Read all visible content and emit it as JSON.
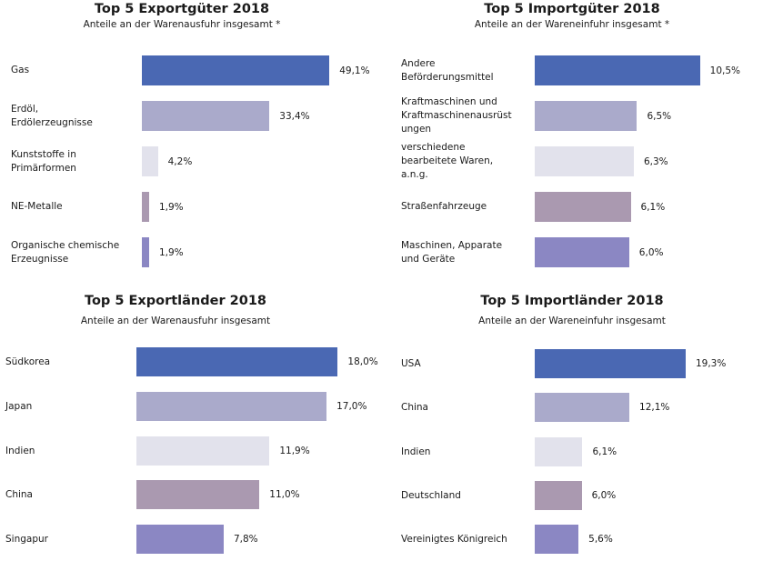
{
  "colors": [
    "#4a68b3",
    "#aaaacb",
    "#e2e2ec",
    "#aa99b0",
    "#8b87c3"
  ],
  "chart_data": [
    {
      "type": "bar",
      "orientation": "horizontal",
      "title": "Top 5  Exportgüter 2018",
      "subtitle": "Anteile an der Warenausfuhr insgesamt *",
      "categories": [
        "Gas",
        "Erdöl,\nErdölerzeugnisse",
        "Kunststoffe in\nPrimärformen",
        "NE-Metalle",
        "Organische chemische\nErzeugnisse"
      ],
      "values": [
        49.1,
        33.4,
        4.2,
        1.9,
        1.9
      ],
      "labels": [
        "49,1%",
        "33,4%",
        "4,2%",
        "1,9%",
        "1,9%"
      ],
      "unit": "%",
      "xlabel": "",
      "ylabel": "",
      "grid": false
    },
    {
      "type": "bar",
      "orientation": "horizontal",
      "title": "Top 5  Importgüter 2018",
      "subtitle": "Anteile an der Wareneinfuhr insgesamt *",
      "categories": [
        "Andere\nBeförderungsmittel",
        "Kraftmaschinen und\nKraftmaschinenausrüst\nungen",
        "verschiedene\nbearbeitete Waren,\na.n.g.",
        "Straßenfahrzeuge",
        "Maschinen, Apparate\nund Geräte"
      ],
      "values": [
        10.5,
        6.5,
        6.3,
        6.1,
        6.0
      ],
      "labels": [
        "10,5%",
        "6,5%",
        "6,3%",
        "6,1%",
        "6,0%"
      ],
      "unit": "%",
      "xlabel": "",
      "ylabel": "",
      "grid": false
    },
    {
      "type": "bar",
      "orientation": "horizontal",
      "title": "Top 5  Exportländer 2018",
      "subtitle": "Anteile an der Warenausfuhr insgesamt",
      "categories": [
        "Südkorea",
        "Japan",
        "Indien",
        "China",
        "Singapur"
      ],
      "values": [
        18.0,
        17.0,
        11.9,
        11.0,
        7.8
      ],
      "labels": [
        "18,0%",
        "17,0%",
        "11,9%",
        "11,0%",
        "7,8%"
      ],
      "unit": "%",
      "xlabel": "",
      "ylabel": "",
      "grid": false
    },
    {
      "type": "bar",
      "orientation": "horizontal",
      "title": "Top 5  Importländer 2018",
      "subtitle": "Anteile an der Wareneinfuhr insgesamt",
      "categories": [
        "USA",
        "China",
        "Indien",
        "Deutschland",
        "Vereinigtes Königreich"
      ],
      "values": [
        19.3,
        12.1,
        6.1,
        6.0,
        5.6
      ],
      "labels": [
        "19,3%",
        "12,1%",
        "6,1%",
        "6,0%",
        "5,6%"
      ],
      "unit": "%",
      "xlabel": "",
      "ylabel": "",
      "grid": false
    }
  ]
}
